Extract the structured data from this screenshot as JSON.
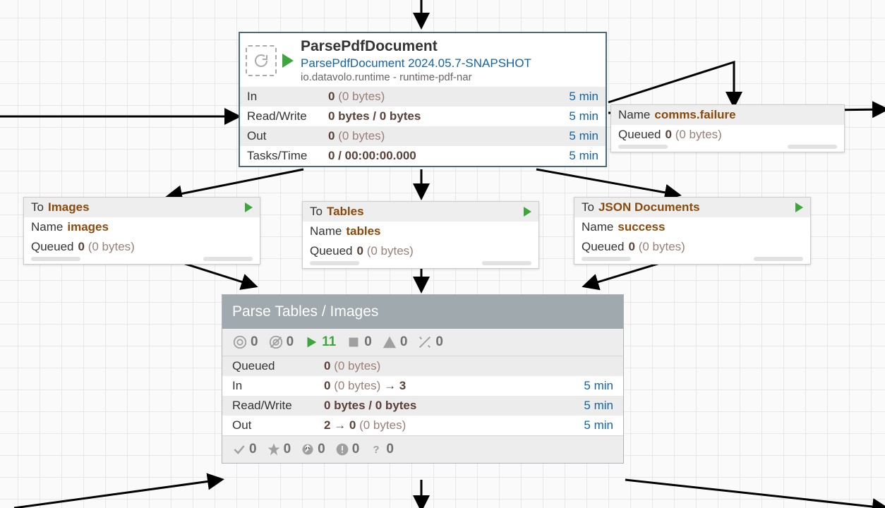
{
  "colors": {
    "border_teal": "#4b6a78",
    "link_blue": "#1264a3",
    "play_green": "#3fa63f",
    "label_brown": "#8a4a0b",
    "value_brown": "#5a4138",
    "muted_brown": "#9a8078",
    "header_gray": "#9fa9ae",
    "icon_gray": "#707070"
  },
  "arrows": {
    "stroke": "#000000",
    "stroke_width": 3,
    "paths": [
      "M 597 0 L 597 36",
      "M 0 165 L 336 165",
      "M 862 145 L 1040 88 L 1040 148",
      "M 862 160 L 1254 155",
      "M 430 240 L 240 278",
      "M 597 240 L 597 278",
      "M 760 240 L 960 276",
      "M 250 370 L 360 405",
      "M 597 378 L 597 410",
      "M 945 370 L 830 405",
      "M 597 680 L 597 720",
      "M 20 720 L 312 680",
      "M 886 680 L 1254 720"
    ]
  },
  "processor": {
    "name": "ParsePdfDocument",
    "type": "ParsePdfDocument 2024.05.7-SNAPSHOT",
    "bundle": "io.datavolo.runtime - runtime-pdf-nar",
    "rows": [
      {
        "label": "In",
        "bold": "0",
        "muted": "(0 bytes)",
        "time": "5 min"
      },
      {
        "label": "Read/Write",
        "bold": "0 bytes / 0 bytes",
        "muted": "",
        "time": "5 min"
      },
      {
        "label": "Out",
        "bold": "0",
        "muted": "(0 bytes)",
        "time": "5 min"
      },
      {
        "label": "Tasks/Time",
        "bold": "0 / 00:00:00.000",
        "muted": "",
        "time": "5 min"
      }
    ]
  },
  "conn_failure": {
    "name_label": "Name",
    "name_value": "comms.failure",
    "queued_label": "Queued",
    "queued_bold": "0",
    "queued_muted": "(0 bytes)"
  },
  "conn_images": {
    "to_label": "To",
    "to_value": "Images",
    "name_label": "Name",
    "name_value": "images",
    "queued_label": "Queued",
    "queued_bold": "0",
    "queued_muted": "(0 bytes)"
  },
  "conn_tables": {
    "to_label": "To",
    "to_value": "Tables",
    "name_label": "Name",
    "name_value": "tables",
    "queued_label": "Queued",
    "queued_bold": "0",
    "queued_muted": "(0 bytes)"
  },
  "conn_json": {
    "to_label": "To",
    "to_value": "JSON Documents",
    "name_label": "Name",
    "name_value": "success",
    "queued_label": "Queued",
    "queued_bold": "0",
    "queued_muted": "(0 bytes)"
  },
  "pgroup": {
    "title": "Parse Tables / Images",
    "icons": {
      "transmitting": "0",
      "not_transmitting": "0",
      "running": "11",
      "stopped": "0",
      "invalid": "0",
      "disabled": "0"
    },
    "rows": [
      {
        "label": "Queued",
        "bold": "0",
        "muted": "(0 bytes)",
        "time": ""
      },
      {
        "label": "In",
        "bold": "0",
        "muted": "(0 bytes)",
        "tail": " → 3",
        "time": "5 min"
      },
      {
        "label": "Read/Write",
        "bold": "0 bytes / 0 bytes",
        "muted": "",
        "tail": "",
        "time": "5 min"
      },
      {
        "label": "Out",
        "bold": "2 → 0",
        "muted": "(0 bytes)",
        "tail": "",
        "time": "5 min"
      }
    ],
    "footer": {
      "up_to_date": "0",
      "locally_modified": "0",
      "stale": "0",
      "sync_failure": "0",
      "unknown": "0"
    }
  }
}
